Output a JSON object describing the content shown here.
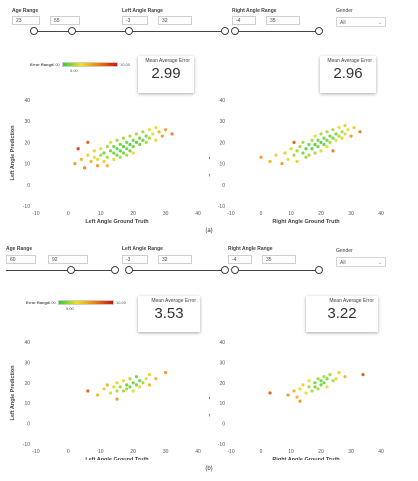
{
  "panels": [
    {
      "id": "a",
      "caption": "(a)",
      "age": {
        "label": "Age Range",
        "min": "23",
        "max": "55",
        "lo": 0.04,
        "hi": 0.42
      },
      "left": {
        "label": "Left Angle Range",
        "min": "-3",
        "max": "32",
        "lo": 0.03,
        "hi": 0.97
      },
      "right": {
        "label": "Right Angle Range",
        "min": "-4",
        "max": "35",
        "lo": 0.03,
        "hi": 0.97
      },
      "gender": {
        "label": "Gender",
        "value": "All"
      },
      "legend": {
        "title": "Error Range",
        "min": "0.00",
        "mid": "5.00",
        "max": "10.00"
      },
      "cards": [
        {
          "title": "Mean Average Error",
          "value": "2.99"
        },
        {
          "title": "Mean Average Error",
          "value": "2.96"
        }
      ]
    },
    {
      "id": "b",
      "caption": "(b)",
      "age": {
        "label": "Age Range",
        "min": "60",
        "max": "92",
        "lo": 0.58,
        "hi": 0.97
      },
      "left": {
        "label": "Left Angle Range",
        "min": "-3",
        "max": "32",
        "lo": 0.03,
        "hi": 0.97
      },
      "right": {
        "label": "Right Angle Range",
        "min": "-4",
        "max": "35",
        "lo": 0.03,
        "hi": 0.97
      },
      "gender": {
        "label": "Gender",
        "value": "All"
      },
      "legend": {
        "title": "Error Range",
        "min": "0.00",
        "mid": "5.00",
        "max": "10.00"
      },
      "cards": [
        {
          "title": "Mean Average Error",
          "value": "3.53"
        },
        {
          "title": "Mean Average Error",
          "value": "3.22"
        }
      ]
    }
  ],
  "chart_data": [
    {
      "type": "scatter",
      "panel": "a",
      "title": "",
      "xlabel": "Left Angle Ground Truth",
      "ylabel": "Left Angle Prediction",
      "xlim": [
        -10,
        40
      ],
      "ylim": [
        -10,
        40
      ],
      "xticks": [
        "-10",
        "0",
        "10",
        "20",
        "30",
        "40"
      ],
      "yticks": [
        "-10",
        "0",
        "10",
        "20",
        "30",
        "40"
      ],
      "grid": false,
      "colorscale": {
        "label": "Error Range",
        "range": [
          0,
          10
        ],
        "colors": [
          "#2ecc40",
          "#f0e020",
          "#f08010",
          "#d01010"
        ]
      },
      "points": [
        [
          2,
          10,
          6
        ],
        [
          4,
          12,
          5
        ],
        [
          5,
          8,
          7
        ],
        [
          6,
          14,
          4
        ],
        [
          7,
          11,
          5
        ],
        [
          8,
          13,
          3
        ],
        [
          8,
          16,
          4
        ],
        [
          9,
          9,
          6
        ],
        [
          9,
          12,
          3
        ],
        [
          10,
          14,
          2
        ],
        [
          10,
          17,
          3
        ],
        [
          11,
          11,
          4
        ],
        [
          11,
          15,
          1
        ],
        [
          12,
          13,
          2
        ],
        [
          12,
          18,
          2
        ],
        [
          12,
          9,
          5
        ],
        [
          13,
          16,
          1
        ],
        [
          13,
          20,
          3
        ],
        [
          14,
          12,
          3
        ],
        [
          14,
          15,
          1
        ],
        [
          14,
          18,
          1
        ],
        [
          15,
          14,
          1
        ],
        [
          15,
          17,
          0.5
        ],
        [
          15,
          21,
          2
        ],
        [
          16,
          13,
          2
        ],
        [
          16,
          16,
          0.5
        ],
        [
          16,
          19,
          1
        ],
        [
          17,
          15,
          1
        ],
        [
          17,
          18,
          0.5
        ],
        [
          17,
          22,
          2
        ],
        [
          18,
          14,
          2
        ],
        [
          18,
          17,
          1
        ],
        [
          18,
          20,
          1
        ],
        [
          19,
          16,
          1
        ],
        [
          19,
          19,
          0.5
        ],
        [
          19,
          23,
          2
        ],
        [
          20,
          18,
          1
        ],
        [
          20,
          21,
          1
        ],
        [
          20,
          15,
          3
        ],
        [
          21,
          20,
          0.5
        ],
        [
          21,
          24,
          2
        ],
        [
          22,
          19,
          1
        ],
        [
          22,
          22,
          1
        ],
        [
          23,
          21,
          1
        ],
        [
          23,
          25,
          2
        ],
        [
          24,
          20,
          2
        ],
        [
          24,
          23,
          1
        ],
        [
          25,
          22,
          2
        ],
        [
          25,
          26,
          3
        ],
        [
          26,
          24,
          3
        ],
        [
          27,
          21,
          4
        ],
        [
          27,
          27,
          4
        ],
        [
          28,
          25,
          5
        ],
        [
          29,
          23,
          6
        ],
        [
          30,
          26,
          6
        ],
        [
          32,
          24,
          7
        ],
        [
          6,
          20,
          8
        ],
        [
          3,
          17,
          9
        ]
      ]
    },
    {
      "type": "scatter",
      "panel": "a",
      "title": "",
      "xlabel": "Right Angle Ground Truth",
      "ylabel": "Right Angle Prediction",
      "xlim": [
        -10,
        40
      ],
      "ylim": [
        -10,
        40
      ],
      "xticks": [
        "-10",
        "0",
        "10",
        "20",
        "30",
        "40"
      ],
      "yticks": [
        "-10",
        "0",
        "10",
        "20",
        "30",
        "40"
      ],
      "grid": false,
      "colorscale": {
        "label": "Error Range",
        "range": [
          0,
          10
        ],
        "colors": [
          "#2ecc40",
          "#f0e020",
          "#f08010",
          "#d01010"
        ]
      },
      "points": [
        [
          0,
          13,
          6
        ],
        [
          3,
          11,
          5
        ],
        [
          5,
          14,
          4
        ],
        [
          7,
          10,
          6
        ],
        [
          8,
          15,
          4
        ],
        [
          9,
          12,
          3
        ],
        [
          10,
          17,
          3
        ],
        [
          11,
          14,
          2
        ],
        [
          12,
          16,
          2
        ],
        [
          12,
          11,
          4
        ],
        [
          13,
          18,
          2
        ],
        [
          14,
          15,
          1
        ],
        [
          14,
          20,
          2
        ],
        [
          15,
          13,
          2
        ],
        [
          15,
          17,
          0.5
        ],
        [
          16,
          19,
          1
        ],
        [
          16,
          14,
          2
        ],
        [
          17,
          21,
          2
        ],
        [
          17,
          17,
          0.5
        ],
        [
          18,
          15,
          2
        ],
        [
          18,
          19,
          0.5
        ],
        [
          18,
          23,
          3
        ],
        [
          19,
          18,
          1
        ],
        [
          19,
          21,
          1
        ],
        [
          20,
          16,
          3
        ],
        [
          20,
          20,
          0.5
        ],
        [
          20,
          24,
          2
        ],
        [
          21,
          19,
          1
        ],
        [
          21,
          22,
          1
        ],
        [
          22,
          18,
          3
        ],
        [
          22,
          21,
          1
        ],
        [
          22,
          25,
          2
        ],
        [
          23,
          20,
          2
        ],
        [
          23,
          23,
          1
        ],
        [
          24,
          22,
          1
        ],
        [
          24,
          26,
          2
        ],
        [
          25,
          21,
          3
        ],
        [
          25,
          24,
          1
        ],
        [
          26,
          23,
          2
        ],
        [
          26,
          27,
          3
        ],
        [
          27,
          22,
          4
        ],
        [
          27,
          25,
          2
        ],
        [
          28,
          24,
          4
        ],
        [
          28,
          28,
          4
        ],
        [
          29,
          26,
          3
        ],
        [
          30,
          23,
          6
        ],
        [
          31,
          27,
          4
        ],
        [
          33,
          25,
          7
        ],
        [
          11,
          20,
          8
        ],
        [
          24,
          16,
          7
        ]
      ]
    },
    {
      "type": "scatter",
      "panel": "b",
      "title": "",
      "xlabel": "Left Angle Ground Truth",
      "ylabel": "Left Angle Prediction",
      "xlim": [
        -10,
        40
      ],
      "ylim": [
        -10,
        40
      ],
      "xticks": [
        "-10",
        "0",
        "10",
        "20",
        "30",
        "40"
      ],
      "yticks": [
        "-10",
        "0",
        "10",
        "20",
        "30",
        "40"
      ],
      "grid": false,
      "colorscale": {
        "label": "Error Range",
        "range": [
          0,
          10
        ],
        "colors": [
          "#2ecc40",
          "#f0e020",
          "#f08010",
          "#d01010"
        ]
      },
      "points": [
        [
          6,
          16,
          8
        ],
        [
          9,
          14,
          5
        ],
        [
          11,
          17,
          4
        ],
        [
          12,
          19,
          5
        ],
        [
          13,
          15,
          3
        ],
        [
          14,
          18,
          3
        ],
        [
          15,
          16,
          2
        ],
        [
          15,
          20,
          4
        ],
        [
          16,
          18,
          2
        ],
        [
          17,
          21,
          3
        ],
        [
          17,
          16,
          2
        ],
        [
          18,
          19,
          1
        ],
        [
          18,
          17,
          2
        ],
        [
          19,
          22,
          2
        ],
        [
          19,
          18,
          1
        ],
        [
          20,
          20,
          1
        ],
        [
          20,
          16,
          3
        ],
        [
          21,
          23,
          1
        ],
        [
          21,
          19,
          1
        ],
        [
          22,
          21,
          1
        ],
        [
          22,
          18,
          3
        ],
        [
          23,
          20,
          2
        ],
        [
          24,
          22,
          3
        ],
        [
          25,
          19,
          5
        ],
        [
          25,
          24,
          4
        ],
        [
          27,
          22,
          5
        ],
        [
          30,
          25,
          6
        ],
        [
          15,
          12,
          6
        ]
      ]
    },
    {
      "type": "scatter",
      "panel": "b",
      "title": "",
      "xlabel": "Right Angle Ground Truth",
      "ylabel": "Right Angle Prediction",
      "xlim": [
        -10,
        40
      ],
      "ylim": [
        -10,
        40
      ],
      "xticks": [
        "-10",
        "0",
        "10",
        "20",
        "30",
        "40"
      ],
      "yticks": [
        "-10",
        "0",
        "10",
        "20",
        "30",
        "40"
      ],
      "grid": false,
      "colorscale": {
        "label": "Error Range",
        "range": [
          0,
          10
        ],
        "colors": [
          "#2ecc40",
          "#f0e020",
          "#f08010",
          "#d01010"
        ]
      },
      "points": [
        [
          3,
          15,
          8
        ],
        [
          9,
          14,
          6
        ],
        [
          11,
          16,
          5
        ],
        [
          12,
          13,
          5
        ],
        [
          13,
          17,
          3
        ],
        [
          14,
          19,
          4
        ],
        [
          15,
          15,
          3
        ],
        [
          16,
          18,
          2
        ],
        [
          16,
          21,
          3
        ],
        [
          17,
          16,
          2
        ],
        [
          18,
          20,
          1
        ],
        [
          18,
          18,
          1
        ],
        [
          19,
          22,
          2
        ],
        [
          19,
          17,
          2
        ],
        [
          20,
          19,
          1
        ],
        [
          20,
          21,
          1
        ],
        [
          21,
          23,
          2
        ],
        [
          21,
          20,
          1
        ],
        [
          22,
          22,
          1
        ],
        [
          22,
          18,
          3
        ],
        [
          23,
          24,
          2
        ],
        [
          24,
          21,
          2
        ],
        [
          25,
          22,
          3
        ],
        [
          26,
          25,
          4
        ],
        [
          28,
          23,
          5
        ],
        [
          34,
          24,
          8
        ],
        [
          13,
          11,
          6
        ]
      ]
    }
  ]
}
